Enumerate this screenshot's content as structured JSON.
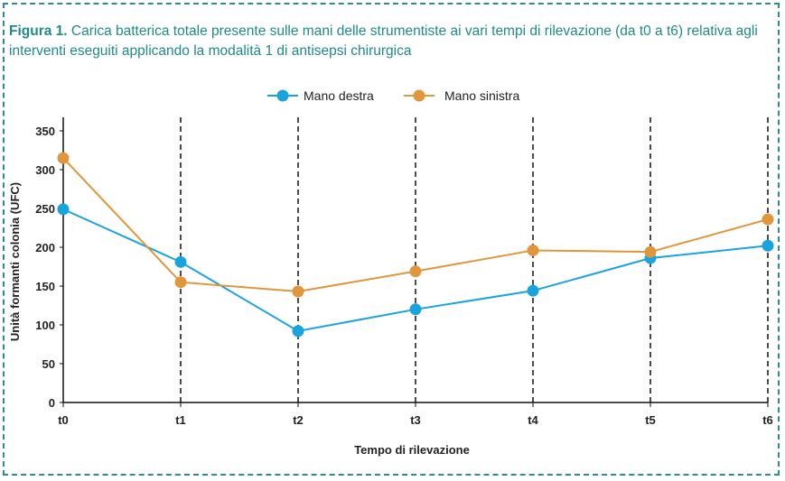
{
  "caption": {
    "lead": "Figura 1.",
    "text": " Carica batterica totale presente sulle mani delle strumentiste ai vari tempi di rilevazione (da t0 a t6) relativa agli interventi eseguiti applicando la modalità 1 di antisepsi chirurgica"
  },
  "chart_data": {
    "type": "line",
    "categories": [
      "t0",
      "t1",
      "t2",
      "t3",
      "t4",
      "t5",
      "t6"
    ],
    "series": [
      {
        "name": "Mano destra",
        "color": "#1aa3dd",
        "values": [
          249,
          181,
          92,
          120,
          144,
          186,
          202
        ]
      },
      {
        "name": "Mano sinistra",
        "color": "#e0963a",
        "values": [
          315,
          155,
          143,
          169,
          196,
          194,
          236
        ]
      }
    ],
    "xlabel": "Tempo di rilevazione",
    "ylabel": "Unità formanti colonia (UFC)",
    "ylim": [
      0,
      350
    ],
    "yticks": [
      0,
      50,
      100,
      150,
      200,
      250,
      300,
      350
    ],
    "grid": "vertical dashed lines at each category",
    "legend_position": "top-center"
  }
}
